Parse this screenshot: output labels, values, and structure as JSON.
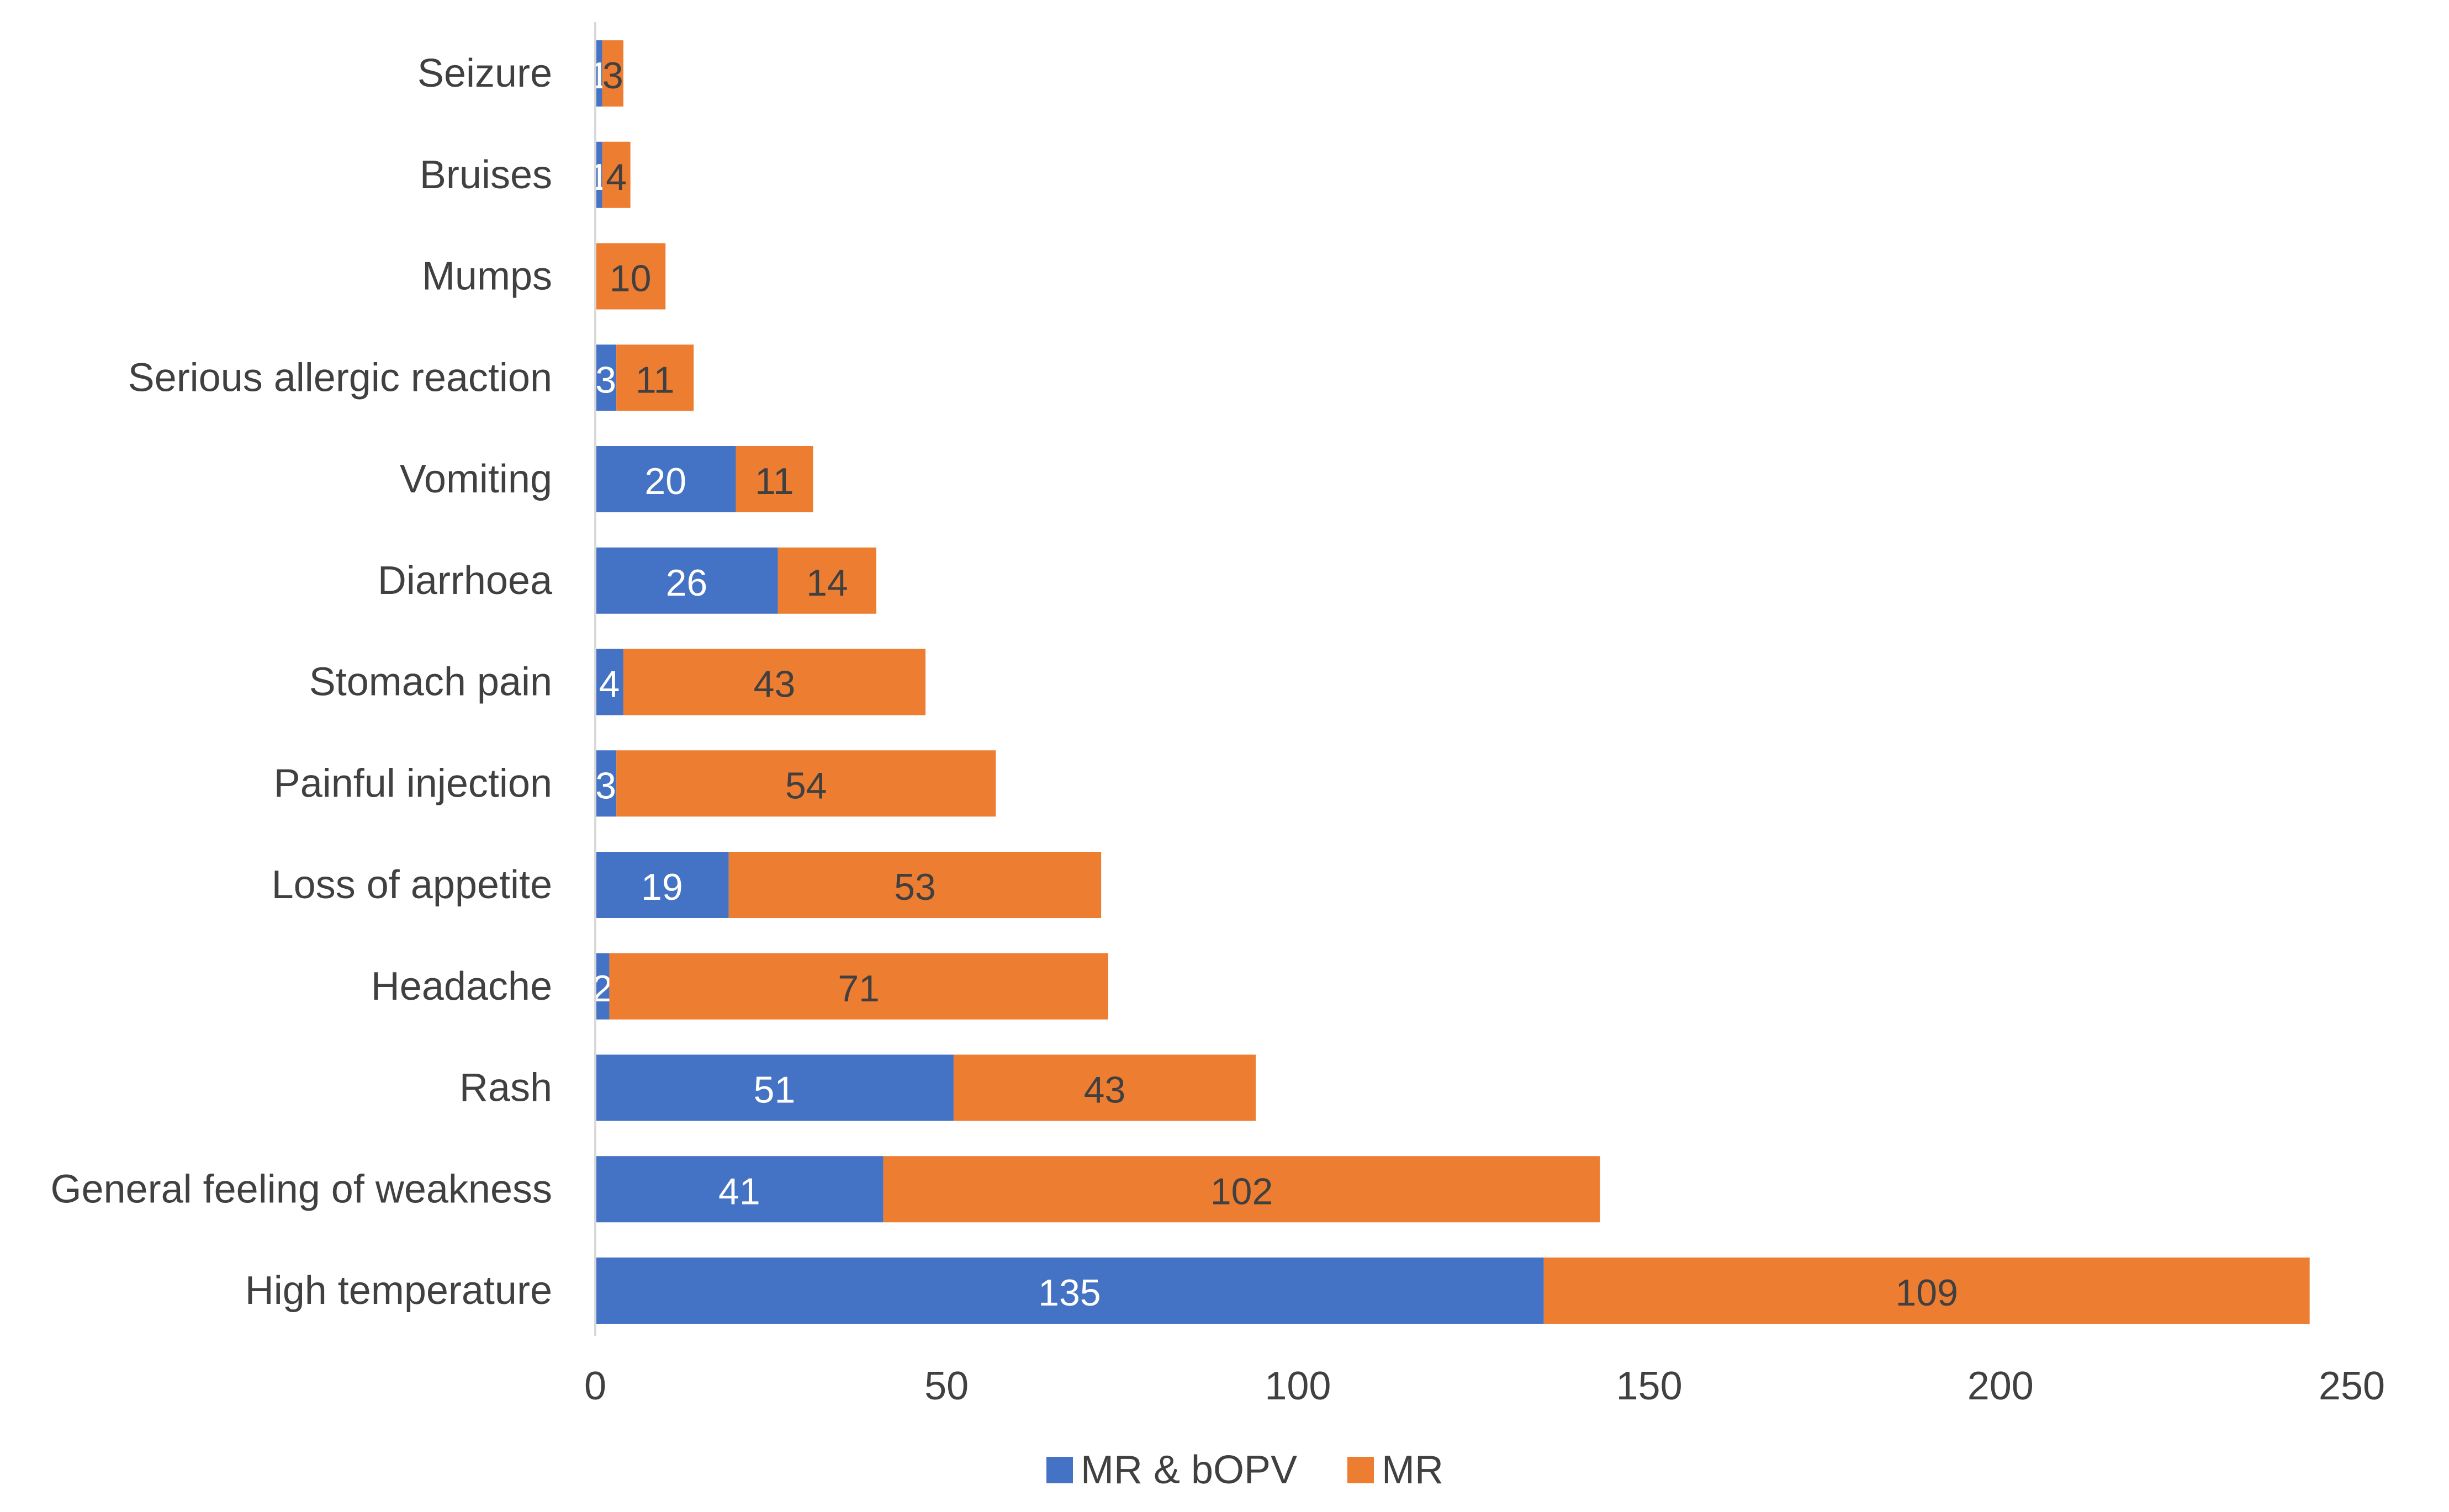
{
  "chart_data": {
    "type": "bar",
    "orientation": "horizontal",
    "stacked": true,
    "title": "",
    "xlabel": "",
    "ylabel": "",
    "xlim": [
      0,
      250
    ],
    "xticks": [
      0,
      50,
      100,
      150,
      200,
      250
    ],
    "grid": false,
    "legend_position": "bottom",
    "categories": [
      "Seizure",
      "Bruises",
      "Mumps",
      "Serious allergic reaction",
      "Vomiting",
      "Diarrhoea",
      "Stomach pain",
      "Painful injection",
      "Loss of appetite",
      "Headache",
      "Rash",
      "General feeling of weakness",
      "High temperature"
    ],
    "series": [
      {
        "name": "MR & bOPV",
        "color": "#4472C4",
        "label_color": "#ffffff",
        "values": [
          1,
          1,
          0,
          3,
          20,
          26,
          4,
          3,
          19,
          2,
          51,
          41,
          135
        ]
      },
      {
        "name": "MR",
        "color": "#ED7D31",
        "label_color": "#404040",
        "values": [
          3,
          4,
          10,
          11,
          11,
          14,
          43,
          54,
          53,
          71,
          43,
          102,
          109
        ]
      }
    ]
  }
}
